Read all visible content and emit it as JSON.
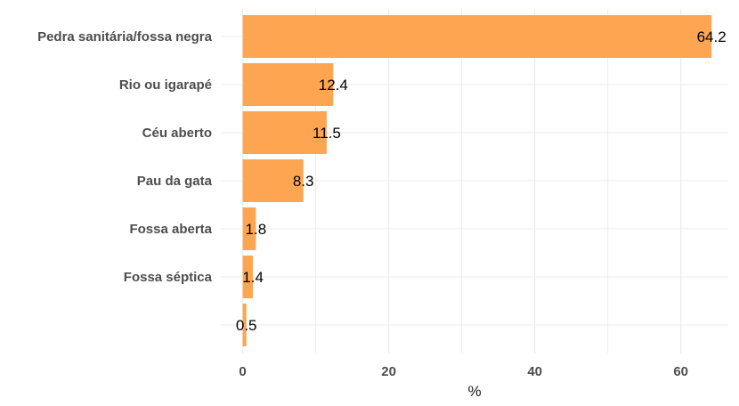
{
  "chart_data": {
    "type": "bar",
    "orientation": "horizontal",
    "categories": [
      "Pedra sanitária/fossa negra",
      "Rio ou igarapé",
      "Céu aberto",
      "Pau da gata",
      "Fossa aberta",
      "Fossa séptica",
      ""
    ],
    "values": [
      64.2,
      12.4,
      11.5,
      8.3,
      1.8,
      1.4,
      0.5
    ],
    "value_labels": [
      "64.2",
      "12.4",
      "11.5",
      "8.3",
      "1.8",
      "1.4",
      "0.5"
    ],
    "xlabel": "%",
    "ylabel": "",
    "xlim": [
      -3,
      66.5
    ],
    "xticks": [
      0,
      20,
      40,
      60
    ],
    "xtick_labels": [
      "0",
      "20",
      "40",
      "60"
    ],
    "grid": true,
    "legend": "none",
    "bar_color": "#fea551",
    "grid_color": "#ebebeb"
  }
}
